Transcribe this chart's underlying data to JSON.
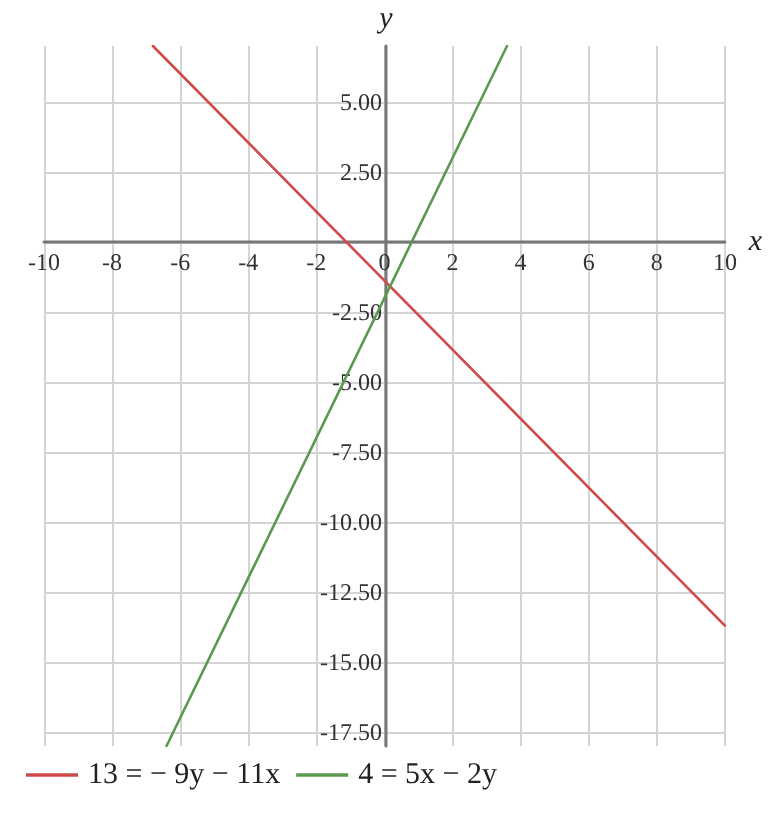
{
  "chart_data": {
    "type": "line",
    "xlabel": "x",
    "ylabel": "y",
    "xlim": [
      -10,
      10
    ],
    "ylim": [
      -18,
      7
    ],
    "xticks": [
      -10,
      -8,
      -6,
      -4,
      -2,
      0,
      2,
      4,
      6,
      8,
      10
    ],
    "yticks": [
      {
        "value": -17.5,
        "label": "-17.50"
      },
      {
        "value": -15,
        "label": "-15.00"
      },
      {
        "value": -12.5,
        "label": "-12.50"
      },
      {
        "value": -10,
        "label": "-10.00"
      },
      {
        "value": -7.5,
        "label": "-7.50"
      },
      {
        "value": -5,
        "label": "-5.00"
      },
      {
        "value": -2.5,
        "label": "-2.50"
      },
      {
        "value": 0,
        "label": null
      },
      {
        "value": 2.5,
        "label": "2.50"
      },
      {
        "value": 5,
        "label": "5.00"
      }
    ],
    "series": [
      {
        "name": "13 = − 9y − 11x",
        "color": "#d04a4a",
        "x": [
          -6.8,
          10
        ],
        "values": [
          7,
          -13.7
        ]
      },
      {
        "name": "4 = 5x − 2y",
        "color": "#5a9a4e",
        "x": [
          -6.4,
          3.6
        ],
        "values": [
          -18,
          7
        ]
      }
    ],
    "grid": true,
    "legend": "bottom",
    "marker": "none",
    "line_style": "solid"
  }
}
